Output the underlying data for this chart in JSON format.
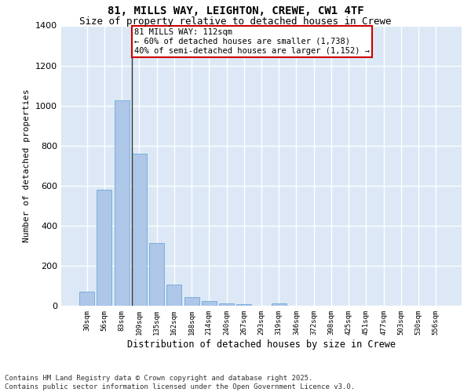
{
  "title_line1": "81, MILLS WAY, LEIGHTON, CREWE, CW1 4TF",
  "title_line2": "Size of property relative to detached houses in Crewe",
  "xlabel": "Distribution of detached houses by size in Crewe",
  "ylabel": "Number of detached properties",
  "categories": [
    "30sqm",
    "56sqm",
    "83sqm",
    "109sqm",
    "135sqm",
    "162sqm",
    "188sqm",
    "214sqm",
    "240sqm",
    "267sqm",
    "293sqm",
    "319sqm",
    "346sqm",
    "372sqm",
    "398sqm",
    "425sqm",
    "451sqm",
    "477sqm",
    "503sqm",
    "530sqm",
    "556sqm"
  ],
  "values": [
    70,
    580,
    1025,
    760,
    315,
    105,
    42,
    25,
    12,
    7,
    0,
    12,
    0,
    0,
    0,
    0,
    0,
    0,
    0,
    0,
    0
  ],
  "bar_color": "#aec6e8",
  "bar_edge_color": "#5a9fd4",
  "highlight_index": 3,
  "highlight_line_color": "#333333",
  "ylim": [
    0,
    1400
  ],
  "yticks": [
    0,
    200,
    400,
    600,
    800,
    1000,
    1200,
    1400
  ],
  "annotation_box_text": "81 MILLS WAY: 112sqm\n← 60% of detached houses are smaller (1,738)\n40% of semi-detached houses are larger (1,152) →",
  "annotation_box_color": "#cc0000",
  "annotation_box_fill": "#ffffff",
  "background_color": "#dce8f5",
  "grid_color": "#ffffff",
  "footnote": "Contains HM Land Registry data © Crown copyright and database right 2025.\nContains public sector information licensed under the Open Government Licence v3.0.",
  "title_fontsize": 10,
  "subtitle_fontsize": 9,
  "annotation_fontsize": 7.5,
  "footnote_fontsize": 6.5,
  "ylabel_fontsize": 8,
  "xlabel_fontsize": 8.5
}
